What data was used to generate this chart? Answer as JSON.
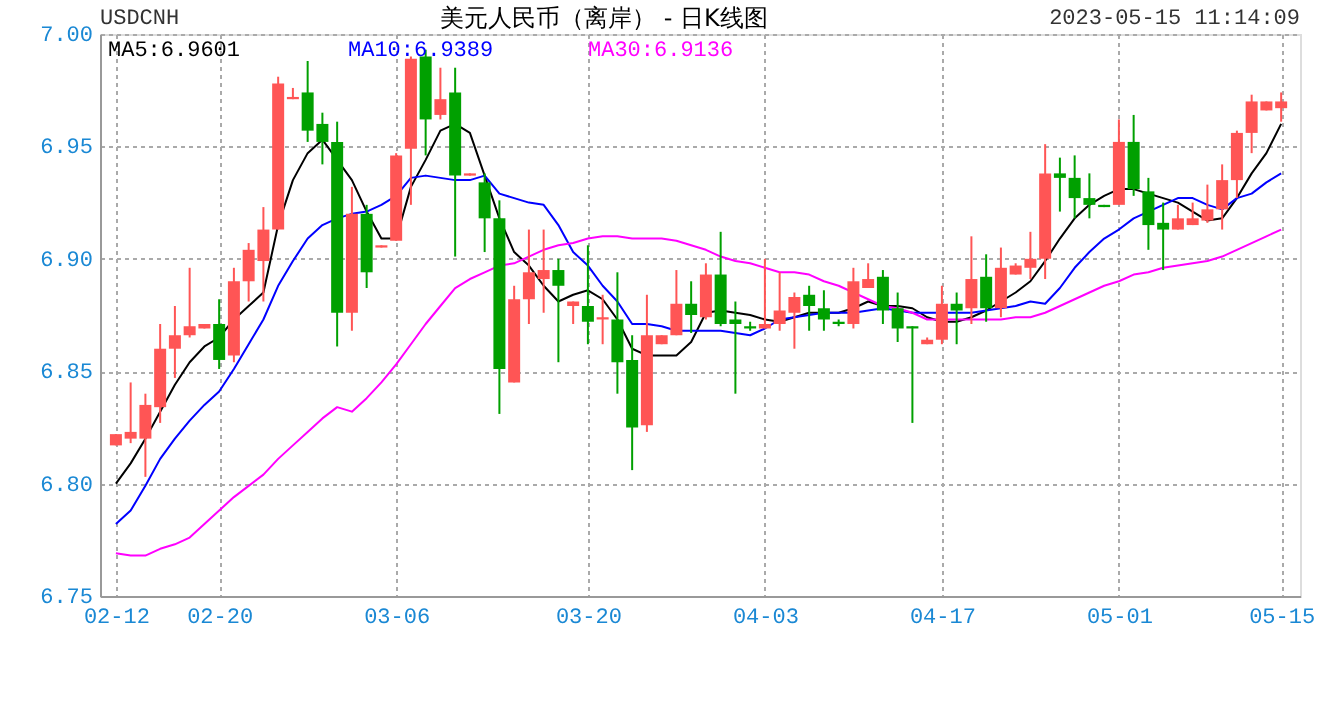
{
  "chart_data": {
    "type": "candlestick",
    "title": "美元人民币（离岸） - 日K线图",
    "annotations": [
      "USDCNH",
      "2023-05-15 11:14:09"
    ],
    "categories": [
      "02-12",
      null,
      null,
      null,
      null,
      null,
      null,
      "02-20",
      null,
      null,
      null,
      null,
      null,
      null,
      null,
      null,
      null,
      null,
      null,
      "03-06",
      null,
      null,
      null,
      null,
      null,
      null,
      null,
      null,
      null,
      null,
      null,
      null,
      "03-20",
      null,
      null,
      null,
      null,
      null,
      null,
      null,
      null,
      null,
      null,
      null,
      "04-03",
      null,
      null,
      null,
      null,
      null,
      null,
      null,
      null,
      null,
      null,
      null,
      "04-17",
      null,
      null,
      null,
      null,
      null,
      null,
      null,
      null,
      null,
      null,
      null,
      "05-01",
      null,
      null,
      null,
      null,
      null,
      null,
      null,
      null,
      null,
      null,
      "05-15"
    ],
    "ohlc": [
      [
        6.817,
        6.822,
        6.817,
        6.822
      ],
      [
        6.82,
        6.845,
        6.818,
        6.823
      ],
      [
        6.82,
        6.84,
        6.803,
        6.835
      ],
      [
        6.834,
        6.871,
        6.827,
        6.86
      ],
      [
        6.86,
        6.879,
        6.847,
        6.866
      ],
      [
        6.866,
        6.896,
        6.865,
        6.87
      ],
      [
        6.869,
        6.871,
        6.869,
        6.871
      ],
      [
        6.871,
        6.882,
        6.851,
        6.855
      ],
      [
        6.857,
        6.896,
        6.854,
        6.89
      ],
      [
        6.89,
        6.907,
        6.881,
        6.904
      ],
      [
        6.899,
        6.923,
        6.881,
        6.913
      ],
      [
        6.913,
        6.981,
        6.913,
        6.978
      ],
      [
        6.971,
        6.976,
        6.971,
        6.972
      ],
      [
        6.974,
        6.988,
        6.952,
        6.957
      ],
      [
        6.96,
        6.965,
        6.942,
        6.952
      ],
      [
        6.952,
        6.961,
        6.861,
        6.876
      ],
      [
        6.876,
        6.932,
        6.868,
        6.92
      ],
      [
        6.92,
        6.924,
        6.887,
        6.894
      ],
      [
        6.905,
        6.906,
        6.905,
        6.906
      ],
      [
        6.908,
        6.947,
        6.908,
        6.946
      ],
      [
        6.949,
        6.99,
        6.924,
        6.989
      ],
      [
        6.99,
        6.993,
        6.946,
        6.962
      ],
      [
        6.964,
        6.985,
        6.962,
        6.971
      ],
      [
        6.974,
        6.985,
        6.901,
        6.937
      ],
      [
        6.937,
        6.938,
        6.937,
        6.938
      ],
      [
        6.934,
        6.938,
        6.903,
        6.918
      ],
      [
        6.918,
        6.926,
        6.831,
        6.851
      ],
      [
        6.845,
        6.888,
        6.845,
        6.882
      ],
      [
        6.882,
        6.913,
        6.871,
        6.894
      ],
      [
        6.891,
        6.913,
        6.876,
        6.895
      ],
      [
        6.895,
        6.9,
        6.854,
        6.888
      ],
      [
        6.879,
        6.881,
        6.871,
        6.881
      ],
      [
        6.879,
        6.906,
        6.862,
        6.872
      ],
      [
        6.873,
        6.884,
        6.862,
        6.874
      ],
      [
        6.873,
        6.894,
        6.84,
        6.854
      ],
      [
        6.855,
        6.866,
        6.806,
        6.825
      ],
      [
        6.826,
        6.884,
        6.823,
        6.866
      ],
      [
        6.862,
        6.866,
        6.862,
        6.866
      ],
      [
        6.866,
        6.895,
        6.866,
        6.88
      ],
      [
        6.88,
        6.89,
        6.867,
        6.875
      ],
      [
        6.874,
        6.898,
        6.873,
        6.893
      ],
      [
        6.893,
        6.912,
        6.87,
        6.871
      ],
      [
        6.873,
        6.881,
        6.84,
        6.871
      ],
      [
        6.87,
        6.872,
        6.868,
        6.869
      ],
      [
        6.869,
        6.9,
        6.869,
        6.871
      ],
      [
        6.871,
        6.894,
        6.868,
        6.877
      ],
      [
        6.876,
        6.885,
        6.86,
        6.883
      ],
      [
        6.884,
        6.888,
        6.868,
        6.879
      ],
      [
        6.878,
        6.886,
        6.868,
        6.873
      ],
      [
        6.872,
        6.873,
        6.87,
        6.871
      ],
      [
        6.871,
        6.896,
        6.869,
        6.89
      ],
      [
        6.887,
        6.898,
        6.887,
        6.891
      ],
      [
        6.892,
        6.895,
        6.871,
        6.877
      ],
      [
        6.878,
        6.885,
        6.863,
        6.869
      ],
      [
        6.87,
        6.87,
        6.827,
        6.869
      ],
      [
        6.862,
        6.865,
        6.862,
        6.864
      ],
      [
        6.864,
        6.888,
        6.862,
        6.88
      ],
      [
        6.88,
        6.885,
        6.862,
        6.877
      ],
      [
        6.878,
        6.91,
        6.871,
        6.891
      ],
      [
        6.892,
        6.902,
        6.872,
        6.878
      ],
      [
        6.878,
        6.905,
        6.874,
        6.896
      ],
      [
        6.893,
        6.898,
        6.893,
        6.897
      ],
      [
        6.896,
        6.912,
        6.891,
        6.9
      ],
      [
        6.9,
        6.951,
        6.891,
        6.938
      ],
      [
        6.938,
        6.945,
        6.921,
        6.936
      ],
      [
        6.936,
        6.946,
        6.918,
        6.927
      ],
      [
        6.927,
        6.938,
        6.918,
        6.924
      ],
      [
        6.924,
        6.924,
        6.923,
        6.923
      ],
      [
        6.924,
        6.962,
        6.924,
        6.952
      ],
      [
        6.952,
        6.964,
        6.928,
        6.931
      ],
      [
        6.93,
        6.936,
        6.904,
        6.915
      ],
      [
        6.916,
        6.925,
        6.895,
        6.913
      ],
      [
        6.913,
        6.924,
        6.913,
        6.918
      ],
      [
        6.915,
        6.925,
        6.915,
        6.918
      ],
      [
        6.917,
        6.933,
        6.916,
        6.922
      ],
      [
        6.922,
        6.942,
        6.913,
        6.935
      ],
      [
        6.935,
        6.957,
        6.927,
        6.956
      ],
      [
        6.956,
        6.973,
        6.947,
        6.97
      ],
      [
        6.966,
        6.97,
        6.966,
        6.97
      ],
      [
        6.967,
        6.974,
        6.961,
        6.97
      ]
    ],
    "colors": [
      "#ff5555",
      "#ff5555",
      "#ff5555",
      "#ff5555",
      "#ff5555",
      "#ff5555",
      "#ff5555",
      "#00a000",
      "#ff5555",
      "#ff5555",
      "#ff5555",
      "#ff5555",
      "#ff5555",
      "#00a000",
      "#00a000",
      "#00a000",
      "#ff5555",
      "#00a000",
      "#ff5555",
      "#ff5555",
      "#ff5555",
      "#00a000",
      "#ff5555",
      "#00a000",
      "#ff5555",
      "#00a000",
      "#00a000",
      "#ff5555",
      "#ff5555",
      "#ff5555",
      "#00a000",
      "#ff5555",
      "#00a000",
      "#ff5555",
      "#00a000",
      "#00a000",
      "#ff5555",
      "#ff5555",
      "#ff5555",
      "#00a000",
      "#ff5555",
      "#00a000",
      "#00a000",
      "#00a000",
      "#ff5555",
      "#ff5555",
      "#ff5555",
      "#00a000",
      "#00a000",
      "#00a000",
      "#ff5555",
      "#ff5555",
      "#00a000",
      "#00a000",
      "#00a000",
      "#ff5555",
      "#ff5555",
      "#00a000",
      "#ff5555",
      "#00a000",
      "#ff5555",
      "#ff5555",
      "#ff5555",
      "#ff5555",
      "#00a000",
      "#00a000",
      "#00a000",
      "#00a000",
      "#ff5555",
      "#00a000",
      "#00a000",
      "#00a000",
      "#ff5555",
      "#ff5555",
      "#ff5555",
      "#ff5555",
      "#ff5555",
      "#ff5555",
      "#ff5555",
      "#ff5555"
    ],
    "series": [
      {
        "name": "MA5:6.9601",
        "type": "line",
        "color": "#000000",
        "values": [
          6.8,
          6.809,
          6.82,
          6.832,
          6.844,
          6.854,
          6.861,
          6.865,
          6.873,
          6.879,
          6.885,
          6.915,
          6.935,
          6.947,
          6.953,
          6.944,
          6.935,
          6.921,
          6.909,
          6.909,
          6.932,
          6.944,
          6.957,
          6.96,
          6.956,
          6.937,
          6.918,
          6.903,
          6.897,
          6.888,
          6.881,
          6.884,
          6.886,
          6.882,
          6.873,
          6.86,
          6.857,
          6.857,
          6.857,
          6.863,
          6.876,
          6.877,
          6.876,
          6.875,
          6.873,
          6.872,
          6.874,
          6.876,
          6.876,
          6.876,
          6.878,
          6.881,
          6.879,
          6.879,
          6.878,
          6.874,
          6.872,
          6.872,
          6.874,
          6.877,
          6.881,
          6.885,
          6.89,
          6.899,
          6.909,
          6.918,
          6.924,
          6.928,
          6.931,
          6.931,
          6.929,
          6.927,
          6.925,
          6.921,
          6.917,
          6.918,
          6.927,
          6.938,
          6.947,
          6.96
        ]
      },
      {
        "name": "MA10:6.9389",
        "type": "line",
        "color": "#0000ff",
        "values": [
          6.782,
          6.788,
          6.799,
          6.811,
          6.82,
          6.828,
          6.835,
          6.841,
          6.851,
          6.862,
          6.873,
          6.888,
          6.899,
          6.909,
          6.915,
          6.918,
          6.92,
          6.921,
          6.924,
          6.928,
          6.936,
          6.937,
          6.936,
          6.935,
          6.935,
          6.937,
          6.929,
          6.927,
          6.925,
          6.924,
          6.915,
          6.903,
          6.897,
          6.888,
          6.881,
          6.871,
          6.871,
          6.87,
          6.868,
          6.868,
          6.868,
          6.868,
          6.867,
          6.866,
          6.869,
          6.873,
          6.874,
          6.875,
          6.876,
          6.876,
          6.876,
          6.877,
          6.878,
          6.877,
          6.876,
          6.876,
          6.876,
          6.876,
          6.876,
          6.877,
          6.878,
          6.879,
          6.881,
          6.88,
          6.887,
          6.896,
          6.903,
          6.909,
          6.913,
          6.918,
          6.921,
          6.924,
          6.927,
          6.927,
          6.924,
          6.922,
          6.927,
          6.929,
          6.934,
          6.938
        ]
      },
      {
        "name": "MA30:6.9136",
        "type": "line",
        "color": "#ff00ff",
        "values": [
          6.769,
          6.768,
          6.768,
          6.771,
          6.773,
          6.776,
          6.782,
          6.788,
          6.794,
          6.799,
          6.804,
          6.811,
          6.817,
          6.823,
          6.829,
          6.834,
          6.832,
          6.838,
          6.845,
          6.853,
          6.862,
          6.871,
          6.879,
          6.887,
          6.891,
          6.894,
          6.897,
          6.898,
          6.901,
          6.904,
          6.906,
          6.907,
          6.909,
          6.91,
          6.91,
          6.909,
          6.909,
          6.909,
          6.908,
          6.906,
          6.904,
          6.901,
          6.899,
          6.898,
          6.896,
          6.894,
          6.894,
          6.893,
          6.89,
          6.888,
          6.885,
          6.882,
          6.879,
          6.878,
          6.876,
          6.873,
          6.873,
          6.873,
          6.873,
          6.873,
          6.873,
          6.874,
          6.874,
          6.876,
          6.879,
          6.882,
          6.885,
          6.888,
          6.89,
          6.893,
          6.894,
          6.896,
          6.897,
          6.898,
          6.899,
          6.901,
          6.904,
          6.907,
          6.91,
          6.913
        ]
      }
    ],
    "ylim": [
      6.75,
      7.0
    ],
    "yticks": [
      6.75,
      {
        "value": 6.8,
        "label": "6.80"
      },
      6.85,
      {
        "value": 6.9,
        "label": "6.90"
      },
      6.95,
      {
        "value": 7.0,
        "label": "7.00"
      }
    ],
    "grid": true,
    "legend": "top left"
  }
}
